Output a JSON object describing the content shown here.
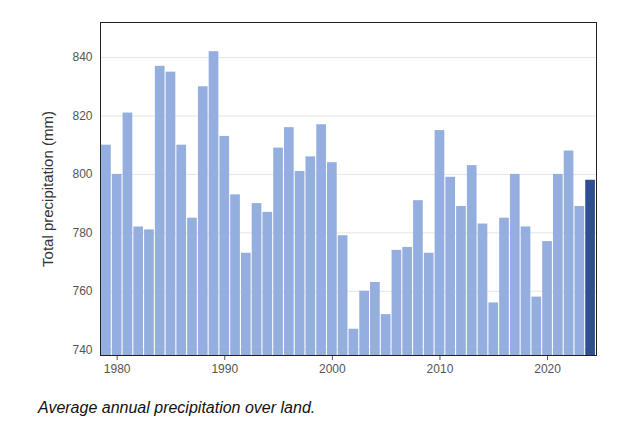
{
  "chart_data": {
    "type": "bar",
    "ylabel": "Total precipitation (mm)",
    "caption": "Average annual precipitation over land.",
    "x": [
      1979,
      1980,
      1981,
      1982,
      1983,
      1984,
      1985,
      1986,
      1987,
      1988,
      1989,
      1990,
      1991,
      1992,
      1993,
      1994,
      1995,
      1996,
      1997,
      1998,
      1999,
      2000,
      2001,
      2002,
      2003,
      2004,
      2005,
      2006,
      2007,
      2008,
      2009,
      2010,
      2011,
      2012,
      2013,
      2014,
      2015,
      2016,
      2017,
      2018,
      2019,
      2020,
      2021,
      2022,
      2023,
      2024
    ],
    "values": [
      810,
      800,
      821,
      782,
      781,
      837,
      835,
      810,
      785,
      830,
      842,
      813,
      793,
      773,
      790,
      787,
      809,
      816,
      801,
      806,
      817,
      804,
      779,
      747,
      760,
      763,
      752,
      774,
      775,
      791,
      773,
      815,
      799,
      789,
      803,
      783,
      756,
      785,
      800,
      782,
      758,
      777,
      800,
      808,
      789,
      798
    ],
    "colors": [
      "#94aee0",
      "#94aee0",
      "#94aee0",
      "#94aee0",
      "#94aee0",
      "#94aee0",
      "#94aee0",
      "#94aee0",
      "#94aee0",
      "#94aee0",
      "#94aee0",
      "#94aee0",
      "#94aee0",
      "#94aee0",
      "#94aee0",
      "#94aee0",
      "#94aee0",
      "#94aee0",
      "#94aee0",
      "#94aee0",
      "#94aee0",
      "#94aee0",
      "#94aee0",
      "#94aee0",
      "#94aee0",
      "#94aee0",
      "#94aee0",
      "#94aee0",
      "#94aee0",
      "#94aee0",
      "#94aee0",
      "#94aee0",
      "#94aee0",
      "#94aee0",
      "#94aee0",
      "#94aee0",
      "#94aee0",
      "#94aee0",
      "#94aee0",
      "#94aee0",
      "#94aee0",
      "#94aee0",
      "#94aee0",
      "#94aee0",
      "#94aee0",
      "#2e4f90"
    ],
    "ylim": [
      738,
      852
    ],
    "yticks": [
      740,
      760,
      780,
      800,
      820,
      840
    ],
    "xticks": [
      1980,
      1990,
      2000,
      2010,
      2020
    ],
    "grid": true
  }
}
